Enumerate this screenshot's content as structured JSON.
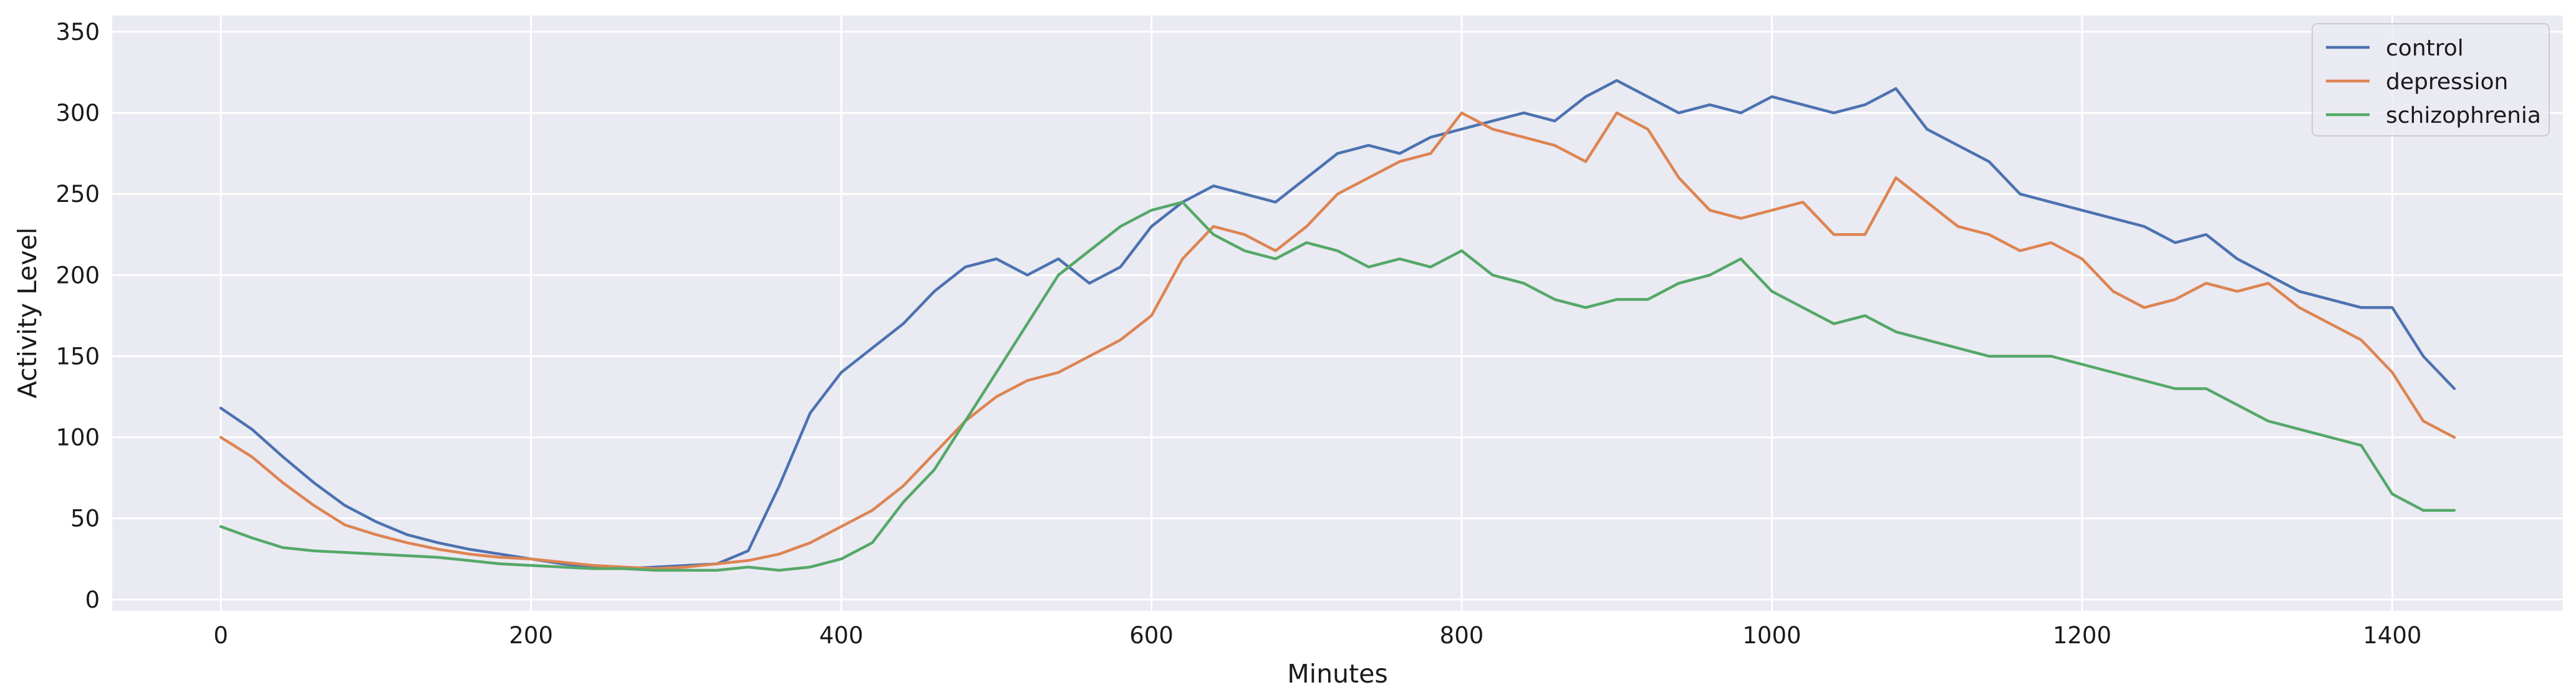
{
  "chart_data": {
    "type": "line",
    "title": "",
    "xlabel": "Minutes",
    "ylabel": "Activity Level",
    "xlim": [
      -70,
      1510
    ],
    "ylim": [
      -7,
      360
    ],
    "xticks": [
      0,
      200,
      400,
      600,
      800,
      1000,
      1200,
      1400
    ],
    "yticks": [
      0,
      50,
      100,
      150,
      200,
      250,
      300,
      350
    ],
    "grid": true,
    "legend_position": "top-right",
    "background": "#eaeaf2",
    "series": [
      {
        "name": "control",
        "color": "#4c72b0",
        "x": [
          0,
          20,
          40,
          60,
          80,
          100,
          120,
          140,
          160,
          180,
          200,
          220,
          240,
          260,
          280,
          300,
          320,
          340,
          360,
          380,
          400,
          420,
          440,
          460,
          480,
          500,
          520,
          540,
          560,
          580,
          600,
          620,
          640,
          660,
          680,
          700,
          720,
          740,
          760,
          780,
          800,
          820,
          840,
          860,
          880,
          900,
          920,
          940,
          960,
          980,
          1000,
          1020,
          1040,
          1060,
          1080,
          1100,
          1120,
          1140,
          1160,
          1180,
          1200,
          1220,
          1240,
          1260,
          1280,
          1300,
          1320,
          1340,
          1360,
          1380,
          1400,
          1420,
          1440
        ],
        "y": [
          118,
          105,
          88,
          72,
          58,
          48,
          40,
          35,
          31,
          28,
          25,
          22,
          20,
          19,
          20,
          21,
          22,
          30,
          70,
          115,
          140,
          155,
          170,
          190,
          205,
          210,
          200,
          210,
          195,
          205,
          230,
          245,
          255,
          250,
          245,
          260,
          275,
          280,
          275,
          285,
          290,
          295,
          300,
          295,
          310,
          320,
          310,
          300,
          305,
          300,
          310,
          305,
          300,
          305,
          315,
          290,
          280,
          270,
          250,
          245,
          240,
          235,
          230,
          220,
          225,
          210,
          200,
          190,
          185,
          180,
          180,
          150,
          130
        ]
      },
      {
        "name": "depression",
        "color": "#dd8452",
        "x": [
          0,
          20,
          40,
          60,
          80,
          100,
          120,
          140,
          160,
          180,
          200,
          220,
          240,
          260,
          280,
          300,
          320,
          340,
          360,
          380,
          400,
          420,
          440,
          460,
          480,
          500,
          520,
          540,
          560,
          580,
          600,
          620,
          640,
          660,
          680,
          700,
          720,
          740,
          760,
          780,
          800,
          820,
          840,
          860,
          880,
          900,
          920,
          940,
          960,
          980,
          1000,
          1020,
          1040,
          1060,
          1080,
          1100,
          1120,
          1140,
          1160,
          1180,
          1200,
          1220,
          1240,
          1260,
          1280,
          1300,
          1320,
          1340,
          1360,
          1380,
          1400,
          1420,
          1440
        ],
        "y": [
          100,
          88,
          72,
          58,
          46,
          40,
          35,
          31,
          28,
          26,
          25,
          23,
          21,
          20,
          19,
          20,
          22,
          24,
          28,
          35,
          45,
          55,
          70,
          90,
          110,
          125,
          135,
          140,
          150,
          160,
          175,
          210,
          230,
          225,
          215,
          230,
          250,
          260,
          270,
          275,
          300,
          290,
          285,
          280,
          270,
          300,
          290,
          260,
          240,
          235,
          240,
          245,
          225,
          225,
          260,
          245,
          230,
          225,
          215,
          220,
          210,
          190,
          180,
          185,
          195,
          190,
          195,
          180,
          170,
          160,
          140,
          110,
          100
        ]
      },
      {
        "name": "schizophrenia",
        "color": "#55a868",
        "x": [
          0,
          20,
          40,
          60,
          80,
          100,
          120,
          140,
          160,
          180,
          200,
          220,
          240,
          260,
          280,
          300,
          320,
          340,
          360,
          380,
          400,
          420,
          440,
          460,
          480,
          500,
          520,
          540,
          560,
          580,
          600,
          620,
          640,
          660,
          680,
          700,
          720,
          740,
          760,
          780,
          800,
          820,
          840,
          860,
          880,
          900,
          920,
          940,
          960,
          980,
          1000,
          1020,
          1040,
          1060,
          1080,
          1100,
          1120,
          1140,
          1160,
          1180,
          1200,
          1220,
          1240,
          1260,
          1280,
          1300,
          1320,
          1340,
          1360,
          1380,
          1400,
          1420,
          1440
        ],
        "y": [
          45,
          38,
          32,
          30,
          29,
          28,
          27,
          26,
          24,
          22,
          21,
          20,
          19,
          19,
          18,
          18,
          18,
          20,
          18,
          20,
          25,
          35,
          60,
          80,
          110,
          140,
          170,
          200,
          215,
          230,
          240,
          245,
          225,
          215,
          210,
          220,
          215,
          205,
          210,
          205,
          215,
          200,
          195,
          185,
          180,
          185,
          185,
          195,
          200,
          210,
          190,
          180,
          170,
          175,
          165,
          160,
          155,
          150,
          150,
          150,
          145,
          140,
          135,
          130,
          130,
          120,
          110,
          105,
          100,
          95,
          65,
          55,
          55
        ]
      }
    ]
  }
}
